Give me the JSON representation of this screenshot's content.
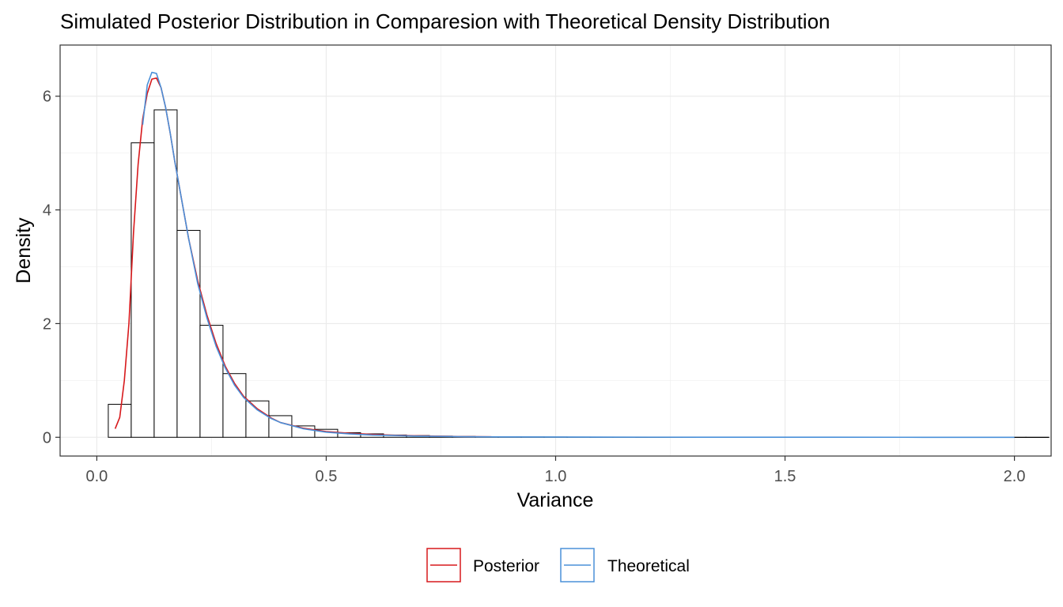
{
  "chart_data": {
    "type": "histogram",
    "title": "Simulated Posterior Distribution in Comparesion with Theoretical Density Distribution",
    "xlabel": "Variance",
    "ylabel": "Density",
    "xlim": [
      -0.08,
      2.08
    ],
    "ylim": [
      -0.33,
      6.9
    ],
    "x_ticks": [
      "0.0",
      "0.5",
      "1.0",
      "1.5",
      "2.0"
    ],
    "x_tick_values": [
      0.0,
      0.5,
      1.0,
      1.5,
      2.0
    ],
    "y_ticks": [
      "0",
      "2",
      "4",
      "6"
    ],
    "y_tick_values": [
      0,
      2,
      4,
      6
    ],
    "grid": true,
    "legend_position": "bottom",
    "histogram": {
      "bin_width": 0.05,
      "bin_start": 0.025,
      "values": [
        0.58,
        5.18,
        5.76,
        3.64,
        1.97,
        1.12,
        0.64,
        0.38,
        0.2,
        0.14,
        0.08,
        0.06,
        0.04,
        0.03,
        0.02,
        0.015,
        0.01,
        0.008,
        0.006,
        0.005,
        0.004,
        0.003,
        0.003,
        0.002,
        0.002,
        0.002,
        0.002,
        0.001,
        0.001,
        0.001,
        0.001,
        0.001,
        0.001,
        0.001,
        0.001,
        0.001,
        0.001,
        0.001,
        0.001,
        0.001,
        0.001
      ],
      "fill": "#ffffff",
      "stroke": "#000000"
    },
    "series": [
      {
        "name": "Posterior",
        "color": "#d7191c",
        "x": [
          0.04,
          0.05,
          0.06,
          0.07,
          0.08,
          0.09,
          0.1,
          0.11,
          0.12,
          0.13,
          0.14,
          0.15,
          0.16,
          0.17,
          0.18,
          0.2,
          0.22,
          0.24,
          0.26,
          0.28,
          0.3,
          0.32,
          0.35,
          0.38,
          0.4,
          0.45,
          0.5,
          0.55,
          0.6,
          0.65,
          0.7,
          0.75,
          0.8,
          0.86
        ],
        "y": [
          0.15,
          0.35,
          1.0,
          2.0,
          3.6,
          4.8,
          5.6,
          6.05,
          6.3,
          6.32,
          6.15,
          5.8,
          5.35,
          4.85,
          4.4,
          3.5,
          2.75,
          2.15,
          1.65,
          1.25,
          0.95,
          0.72,
          0.5,
          0.34,
          0.26,
          0.16,
          0.1,
          0.07,
          0.05,
          0.035,
          0.025,
          0.018,
          0.012,
          0.008
        ]
      },
      {
        "name": "Theoretical",
        "color": "#4a90d9",
        "x": [
          0.1,
          0.11,
          0.12,
          0.13,
          0.14,
          0.15,
          0.16,
          0.17,
          0.18,
          0.2,
          0.22,
          0.24,
          0.26,
          0.28,
          0.3,
          0.32,
          0.35,
          0.38,
          0.4,
          0.45,
          0.5,
          0.55,
          0.6,
          0.7,
          0.8,
          0.9,
          1.0,
          1.2,
          1.4,
          1.6,
          1.8,
          2.0
        ],
        "y": [
          5.5,
          6.2,
          6.42,
          6.4,
          6.15,
          5.8,
          5.35,
          4.85,
          4.4,
          3.5,
          2.7,
          2.1,
          1.6,
          1.22,
          0.92,
          0.7,
          0.48,
          0.33,
          0.26,
          0.15,
          0.09,
          0.06,
          0.04,
          0.02,
          0.01,
          0.006,
          0.004,
          0.002,
          0.001,
          0.001,
          0.0,
          0.0
        ]
      }
    ]
  }
}
